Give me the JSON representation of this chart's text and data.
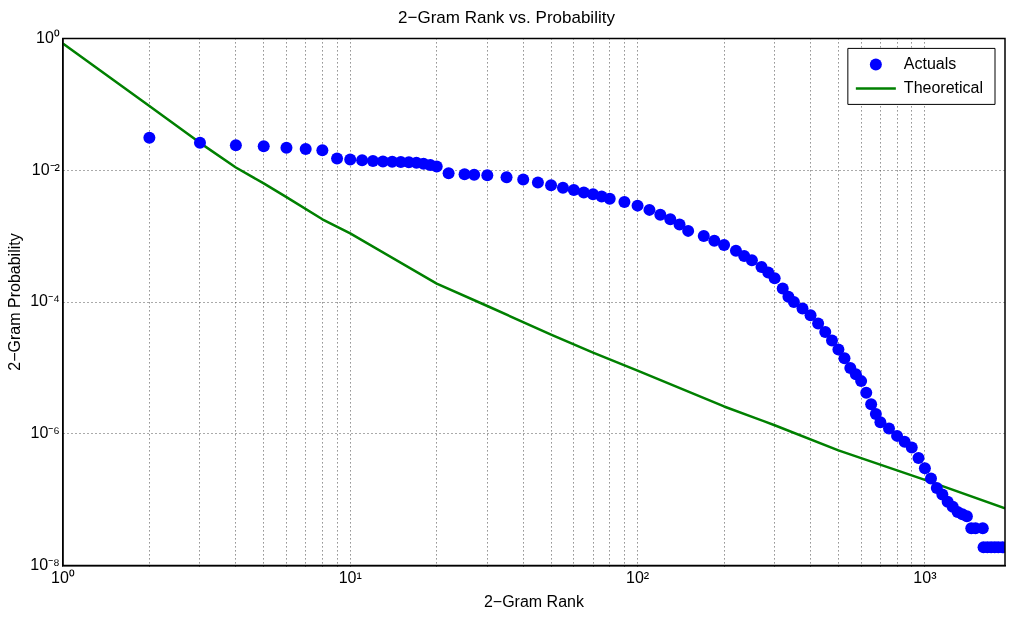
{
  "chart_data": {
    "type": "scatter",
    "title": "2−Gram Rank vs. Probability",
    "xlabel": "2−Gram Rank",
    "ylabel": "2−Gram Probability",
    "log": "xy",
    "grid": true,
    "legend": "top right",
    "xlim": [
      1,
      1900
    ],
    "ylim": [
      1e-08,
      1
    ],
    "xticks": [
      {
        "value": 1,
        "label": "10⁰"
      },
      {
        "value": 2,
        "label": null
      },
      {
        "value": 3,
        "label": null
      },
      {
        "value": 4,
        "label": null
      },
      {
        "value": 5,
        "label": null
      },
      {
        "value": 6,
        "label": null
      },
      {
        "value": 7,
        "label": null
      },
      {
        "value": 8,
        "label": null
      },
      {
        "value": 9,
        "label": null
      },
      {
        "value": 10,
        "label": "10¹"
      },
      {
        "value": 20,
        "label": null
      },
      {
        "value": 30,
        "label": null
      },
      {
        "value": 40,
        "label": null
      },
      {
        "value": 50,
        "label": null
      },
      {
        "value": 60,
        "label": null
      },
      {
        "value": 70,
        "label": null
      },
      {
        "value": 80,
        "label": null
      },
      {
        "value": 90,
        "label": null
      },
      {
        "value": 100,
        "label": "10²"
      },
      {
        "value": 200,
        "label": null
      },
      {
        "value": 300,
        "label": null
      },
      {
        "value": 400,
        "label": null
      },
      {
        "value": 500,
        "label": null
      },
      {
        "value": 600,
        "label": null
      },
      {
        "value": 700,
        "label": null
      },
      {
        "value": 800,
        "label": null
      },
      {
        "value": 900,
        "label": null
      },
      {
        "value": 1000,
        "label": "10³"
      }
    ],
    "yticks": [
      {
        "value": 1e-08,
        "label": "10⁻⁸"
      },
      {
        "value": 1e-06,
        "label": "10⁻⁶"
      },
      {
        "value": 0.0001,
        "label": "10⁻⁴"
      },
      {
        "value": 0.01,
        "label": "10⁻²"
      },
      {
        "value": 1,
        "label": "10⁰"
      }
    ],
    "series": [
      {
        "name": "Actuals",
        "type": "scatter",
        "marker": "circle",
        "color": "#0000ff",
        "x": [
          2,
          3,
          4,
          5,
          6,
          7,
          8,
          9,
          10,
          11,
          12,
          13,
          14,
          15,
          16,
          17,
          18,
          19,
          20,
          22,
          25,
          27,
          30,
          35,
          40,
          45,
          50,
          55,
          60,
          65,
          70,
          75,
          80,
          90,
          100,
          110,
          120,
          130,
          140,
          150,
          170,
          185,
          200,
          220,
          235,
          250,
          270,
          285,
          300,
          320,
          335,
          350,
          375,
          400,
          425,
          450,
          475,
          500,
          525,
          550,
          575,
          600,
          625,
          650,
          675,
          700,
          750,
          800,
          850,
          900,
          950,
          1000,
          1050,
          1100,
          1150,
          1200,
          1250,
          1300,
          1350,
          1400,
          1450,
          1500,
          1590,
          1600,
          1650,
          1700,
          1750,
          1800,
          1860
        ],
        "values": [
          0.031,
          0.026,
          0.024,
          0.023,
          0.022,
          0.021,
          0.02,
          0.015,
          0.0145,
          0.0142,
          0.0138,
          0.0135,
          0.0134,
          0.0133,
          0.0132,
          0.013,
          0.0125,
          0.012,
          0.0114,
          0.009,
          0.0087,
          0.0085,
          0.0084,
          0.0078,
          0.0072,
          0.0065,
          0.0059,
          0.0054,
          0.005,
          0.0046,
          0.0043,
          0.004,
          0.0037,
          0.0033,
          0.0029,
          0.0025,
          0.0021,
          0.0018,
          0.0015,
          0.0012,
          0.001,
          0.00085,
          0.00073,
          0.0006,
          0.0005,
          0.00043,
          0.00034,
          0.00028,
          0.00023,
          0.00016,
          0.00012,
          0.0001,
          8e-05,
          6.3e-05,
          4.7e-05,
          3.5e-05,
          2.6e-05,
          1.9e-05,
          1.4e-05,
          1e-05,
          8e-06,
          6.3e-06,
          4.2e-06,
          2.8e-06,
          2e-06,
          1.5e-06,
          1.2e-06,
          9.3e-07,
          7.6e-07,
          6.2e-07,
          4.3e-07,
          3e-07,
          2.1e-07,
          1.5e-07,
          1.2e-07,
          9.3e-08,
          7.8e-08,
          6.5e-08,
          6e-08,
          5.6e-08,
          3.7e-08,
          3.7e-08,
          3.7e-08,
          1.9e-08,
          1.9e-08,
          1.9e-08,
          1.9e-08,
          1.9e-08,
          1.9e-08
        ]
      },
      {
        "name": "Theoretical",
        "type": "line",
        "color": "#008000",
        "x": [
          1,
          2,
          3,
          4,
          5,
          6,
          8,
          10,
          20,
          30,
          50,
          70,
          100,
          200,
          300,
          500,
          1000,
          1900
        ],
        "values": [
          0.84,
          0.094,
          0.026,
          0.011,
          0.0063,
          0.0039,
          0.0018,
          0.0011,
          0.00019,
          8.7e-05,
          3.2e-05,
          1.7e-05,
          9.1e-06,
          2.6e-06,
          1.35e-06,
          5.6e-07,
          2e-07,
          7.4e-08
        ]
      }
    ]
  }
}
